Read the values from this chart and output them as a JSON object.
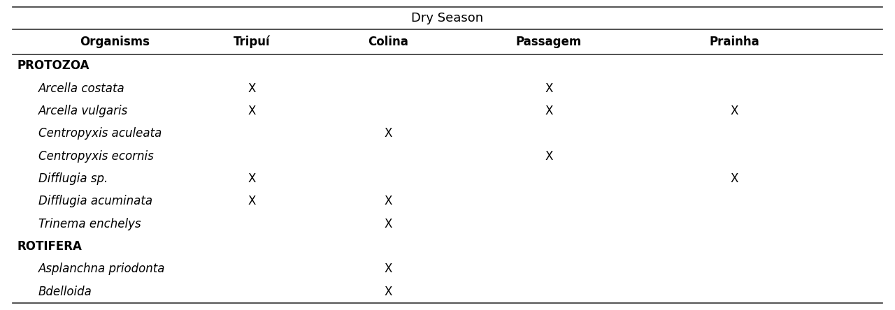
{
  "title": "Dry Season",
  "header_row": [
    "Organisms",
    "Tripuí",
    "Colina",
    "Passagem",
    "Prainha"
  ],
  "rows": [
    {
      "label": "PROTOZOA",
      "type": "category",
      "values": [
        "",
        "",
        "",
        ""
      ]
    },
    {
      "label": "Arcella costata",
      "type": "species",
      "values": [
        "X",
        "",
        "X",
        ""
      ]
    },
    {
      "label": "Arcella vulgaris",
      "type": "species",
      "values": [
        "X",
        "",
        "X",
        "X"
      ]
    },
    {
      "label": "Centropyxis aculeata",
      "type": "species",
      "values": [
        "",
        "X",
        "",
        ""
      ]
    },
    {
      "label": "Centropyxis ecornis",
      "type": "species",
      "values": [
        "",
        "",
        "X",
        ""
      ]
    },
    {
      "label": "Difflugia sp.",
      "type": "species",
      "values": [
        "X",
        "",
        "",
        "X"
      ]
    },
    {
      "label": "Difflugia acuminata",
      "type": "species",
      "values": [
        "X",
        "X",
        "",
        ""
      ]
    },
    {
      "label": "Trinema enchelys",
      "type": "species",
      "values": [
        "",
        "X",
        "",
        ""
      ]
    },
    {
      "label": "ROTIFERA",
      "type": "category",
      "values": [
        "",
        "",
        "",
        ""
      ]
    },
    {
      "label": "Asplanchna priodonta",
      "type": "species",
      "values": [
        "",
        "X",
        "",
        ""
      ]
    },
    {
      "label": "Bdelloida",
      "type": "species",
      "values": [
        "",
        "X",
        "",
        ""
      ]
    }
  ],
  "background_color": "#ffffff",
  "line_color": "#333333",
  "title_fontsize": 13,
  "header_fontsize": 12,
  "body_fontsize": 12,
  "category_fontsize": 12
}
